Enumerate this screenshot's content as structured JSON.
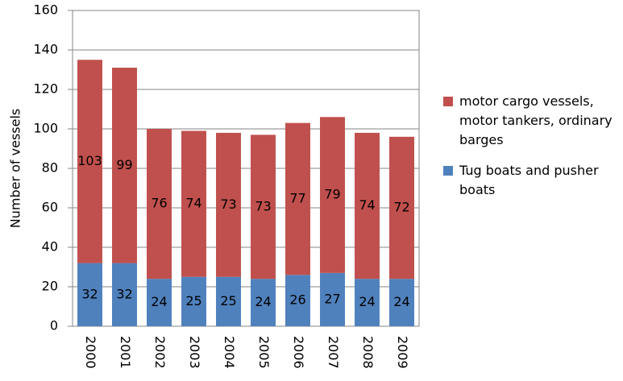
{
  "chart_data": {
    "type": "stacked-bar",
    "y_label": "Number of vessels",
    "categories": [
      "2000",
      "2001",
      "2002",
      "2003",
      "2004",
      "2005",
      "2006",
      "2007",
      "2008",
      "2009"
    ],
    "series": [
      {
        "name": "Tug boats and pusher boats",
        "color": "#4f81bd",
        "values": [
          32,
          32,
          24,
          25,
          25,
          24,
          26,
          27,
          24,
          24
        ]
      },
      {
        "name": "motor cargo vessels, motor tankers, ordinary barges",
        "color": "#c0504d",
        "values": [
          103,
          99,
          76,
          74,
          73,
          73,
          77,
          79,
          74,
          72
        ]
      }
    ],
    "ylim": [
      0,
      160
    ],
    "yticks": [
      0,
      20,
      40,
      60,
      80,
      100,
      120,
      140,
      160
    ],
    "grid": true,
    "legend": "right"
  }
}
